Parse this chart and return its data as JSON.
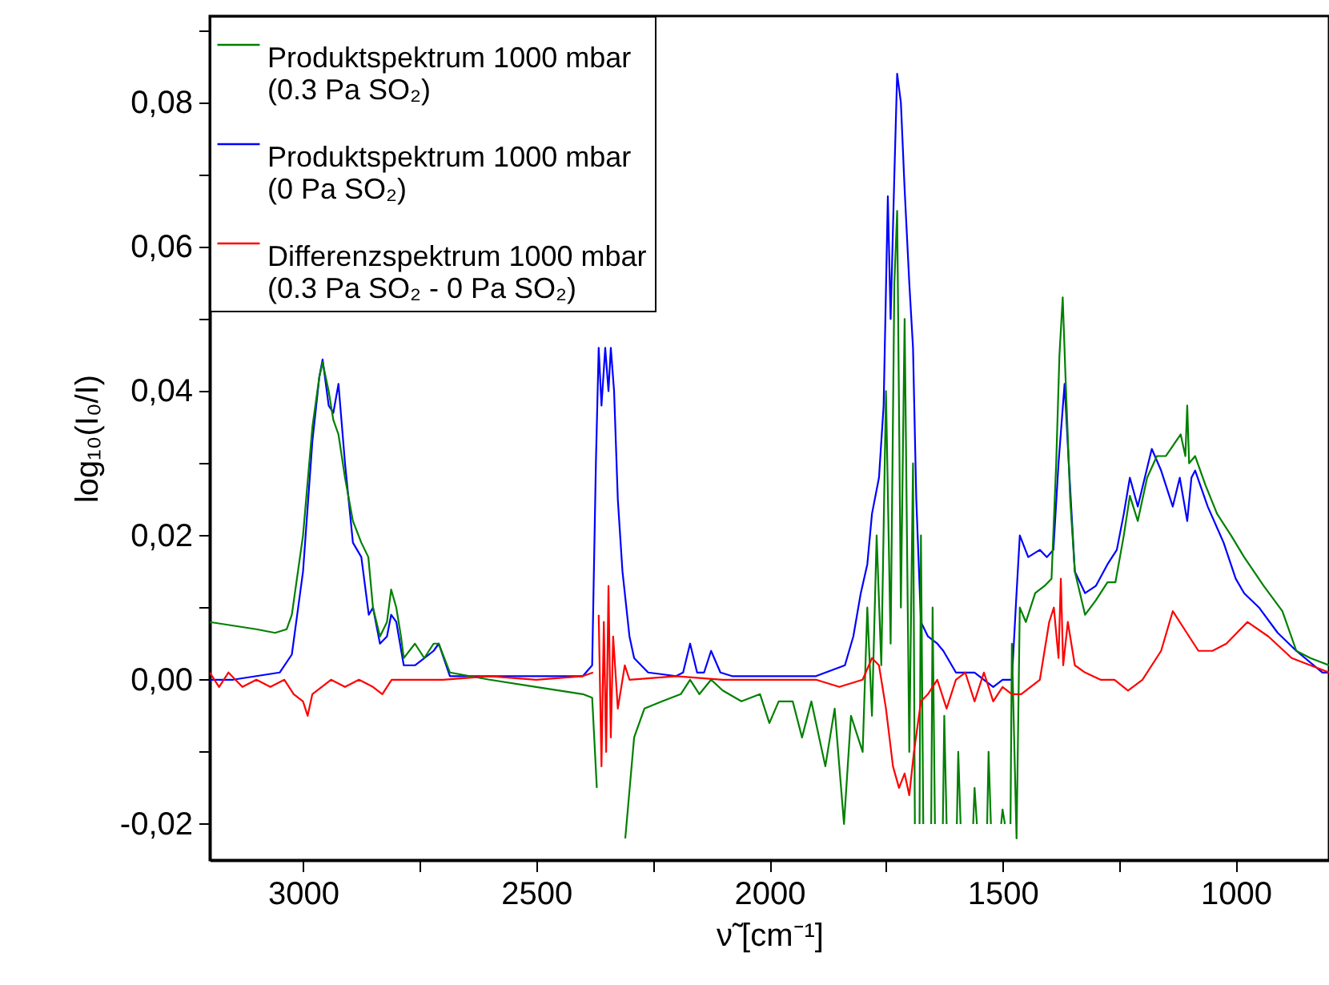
{
  "chart_data": {
    "type": "line",
    "xlabel": "ν̃ [cm⁻¹]",
    "ylabel": "log₁₀(I₀/I)",
    "legend": "top left",
    "grid": false,
    "xlim": [
      3200,
      800
    ],
    "xticks": [
      3000,
      {
        "value": 2750,
        "label": null
      },
      2500,
      {
        "value": 2250,
        "label": null
      },
      2000,
      {
        "value": 1750,
        "label": null
      },
      1500,
      {
        "value": 1250,
        "label": null
      },
      1000
    ],
    "ylim": [
      -0.025,
      0.092
    ],
    "yticks": [
      {
        "value": -0.02,
        "label": "-0,02"
      },
      {
        "value": -0.01,
        "label": null
      },
      {
        "value": 0,
        "label": "0,00"
      },
      {
        "value": 0.01,
        "label": null
      },
      {
        "value": 0.02,
        "label": "0,02"
      },
      {
        "value": 0.03,
        "label": null
      },
      {
        "value": 0.04,
        "label": "0,04"
      },
      {
        "value": 0.05,
        "label": null
      },
      {
        "value": 0.06,
        "label": "0,06"
      },
      {
        "value": 0.07,
        "label": null
      },
      {
        "value": 0.08,
        "label": "0,08"
      },
      {
        "value": 0.09,
        "label": null
      }
    ],
    "series": [
      {
        "name": "Produktspektrum   1000 mbar\n(0.3 Pa SO₂)",
        "color": "#008000",
        "x": [
          3200,
          3150,
          3100,
          3060,
          3035,
          3024,
          3000,
          2980,
          2965,
          2958,
          2945,
          2935,
          2924,
          2910,
          2893,
          2875,
          2860,
          2850,
          2835,
          2820,
          2811,
          2800,
          2790,
          2784,
          2760,
          2740,
          2720,
          2709,
          2685,
          2600,
          2500,
          2400,
          2380,
          2370,
          2362,
          2320,
          2309,
          2290,
          2268,
          2230,
          2190,
          2170,
          2150,
          2125,
          2100,
          2060,
          2020,
          2000,
          1980,
          1950,
          1930,
          1910,
          1880,
          1860,
          1840,
          1825,
          1800,
          1790,
          1780,
          1770,
          1760,
          1750,
          1740,
          1732,
          1726,
          1718,
          1710,
          1700,
          1692,
          1688,
          1685,
          1678,
          1675,
          1670,
          1665,
          1653,
          1650,
          1645,
          1640,
          1628,
          1625,
          1620,
          1610,
          1598,
          1595,
          1590,
          1580,
          1563,
          1560,
          1555,
          1545,
          1533,
          1530,
          1525,
          1515,
          1503,
          1500,
          1495,
          1490,
          1483,
          1480,
          1470,
          1463,
          1450,
          1430,
          1410,
          1395,
          1385,
          1378,
          1371,
          1365,
          1355,
          1345,
          1323,
          1300,
          1275,
          1258,
          1240,
          1227,
          1210,
          1190,
          1169,
          1150,
          1118,
          1108,
          1104,
          1100,
          1087,
          1065,
          1040,
          1010,
          982,
          940,
          900,
          870,
          840,
          800
        ],
        "values": [
          0.008,
          0.0075,
          0.007,
          0.0065,
          0.007,
          0.009,
          0.02,
          0.035,
          0.042,
          0.044,
          0.04,
          0.036,
          0.034,
          0.028,
          0.022,
          0.019,
          0.017,
          0.01,
          0.006,
          0.008,
          0.0125,
          0.01,
          0.006,
          0.003,
          0.005,
          0.003,
          0.005,
          0.005,
          0.001,
          0,
          -0.001,
          -0.002,
          -0.0025,
          -0.015,
          null,
          null,
          -0.022,
          -0.008,
          -0.004,
          -0.003,
          -0.002,
          0,
          -0.002,
          0,
          -0.0015,
          -0.003,
          -0.002,
          -0.006,
          -0.003,
          -0.003,
          -0.008,
          -0.003,
          -0.012,
          -0.004,
          -0.02,
          -0.005,
          -0.01,
          0.01,
          -0.005,
          0.02,
          0.002,
          0.04,
          0.005,
          0.055,
          0.065,
          0.01,
          0.05,
          -0.01,
          0.03,
          -0.02,
          null,
          -0.02,
          0.02,
          -0.02,
          null,
          -0.02,
          0.01,
          -0.02,
          null,
          -0.02,
          -0.005,
          -0.02,
          null,
          -0.02,
          -0.01,
          -0.02,
          null,
          -0.02,
          -0.015,
          -0.02,
          null,
          -0.02,
          -0.01,
          -0.02,
          null,
          -0.02,
          -0.018,
          -0.02,
          null,
          -0.02,
          0.005,
          -0.022,
          0.01,
          0.008,
          0.012,
          0.013,
          0.014,
          0.03,
          0.045,
          0.053,
          0.042,
          0.025,
          0.015,
          0.009,
          0.011,
          0.0135,
          0.0135,
          0.02,
          0.0255,
          0.022,
          0.028,
          0.031,
          0.031,
          0.034,
          0.031,
          0.038,
          0.03,
          0.031,
          0.027,
          0.023,
          0.02,
          0.017,
          0.013,
          0.0095,
          0.004,
          0.003,
          0.002
        ]
      },
      {
        "name": "Produktspektrum   1000 mbar\n(0 Pa SO₂)",
        "color": "#0000ff",
        "x": [
          3200,
          3150,
          3100,
          3050,
          3024,
          3000,
          2980,
          2965,
          2958,
          2945,
          2935,
          2924,
          2910,
          2893,
          2875,
          2859,
          2850,
          2835,
          2820,
          2811,
          2800,
          2784,
          2760,
          2740,
          2720,
          2709,
          2685,
          2600,
          2500,
          2400,
          2380,
          2372,
          2366,
          2360,
          2352,
          2345,
          2340,
          2333,
          2325,
          2315,
          2300,
          2290,
          2260,
          2200,
          2185,
          2170,
          2155,
          2140,
          2125,
          2105,
          2080,
          2000,
          1900,
          1838,
          1820,
          1804,
          1790,
          1780,
          1765,
          1755,
          1746,
          1740,
          1732,
          1726,
          1718,
          1710,
          1700,
          1692,
          1685,
          1675,
          1660,
          1640,
          1627,
          1600,
          1560,
          1520,
          1500,
          1480,
          1470,
          1463,
          1445,
          1420,
          1405,
          1391,
          1380,
          1367,
          1358,
          1345,
          1323,
          1300,
          1275,
          1255,
          1240,
          1227,
          1210,
          1195,
          1180,
          1160,
          1135,
          1120,
          1104,
          1095,
          1087,
          1060,
          1026,
          1000,
          982,
          950,
          910,
          870,
          814,
          800
        ],
        "values": [
          0,
          0,
          0.0005,
          0.001,
          0.0035,
          0.015,
          0.033,
          0.042,
          0.0444,
          0.038,
          0.037,
          0.041,
          0.03,
          0.019,
          0.017,
          0.009,
          0.01,
          0.005,
          0.006,
          0.009,
          0.008,
          0.002,
          0.002,
          0.003,
          0.004,
          0.005,
          0.0005,
          0.0005,
          0.0005,
          0.0005,
          0.002,
          0.03,
          0.046,
          0.038,
          0.046,
          0.04,
          0.046,
          0.04,
          0.025,
          0.015,
          0.006,
          0.003,
          0.001,
          0.0005,
          0.001,
          0.005,
          0.001,
          0.001,
          0.004,
          0.001,
          0.0005,
          0.0005,
          0.0005,
          0.002,
          0.006,
          0.012,
          0.016,
          0.023,
          0.028,
          0.038,
          0.067,
          0.05,
          0.07,
          0.084,
          0.08,
          0.068,
          0.055,
          0.046,
          0.025,
          0.008,
          0.006,
          0.005,
          0.004,
          0.001,
          0.001,
          -0.001,
          0,
          0,
          0.012,
          0.02,
          0.017,
          0.018,
          0.017,
          0.018,
          0.03,
          0.041,
          0.03,
          0.015,
          0.012,
          0.013,
          0.016,
          0.018,
          0.023,
          0.028,
          0.024,
          0.028,
          0.032,
          0.029,
          0.024,
          0.028,
          0.022,
          0.028,
          0.029,
          0.024,
          0.019,
          0.014,
          0.012,
          0.01,
          0.0065,
          0.004,
          0.001,
          0.001
        ]
      },
      {
        "name": "Differenzspektrum 1000 mbar\n(0.3 Pa SO₂ - 0 Pa SO₂)",
        "color": "#ff0000",
        "x": [
          3200,
          3180,
          3160,
          3130,
          3100,
          3070,
          3040,
          3020,
          3000,
          2990,
          2980,
          2960,
          2940,
          2910,
          2880,
          2850,
          2830,
          2810,
          2780,
          2750,
          2700,
          2600,
          2500,
          2400,
          2378,
          2372,
          2366,
          2360,
          2355,
          2350,
          2345,
          2340,
          2335,
          2325,
          2310,
          2300,
          2200,
          2100,
          2000,
          1950,
          1900,
          1850,
          1800,
          1780,
          1765,
          1750,
          1735,
          1722,
          1710,
          1700,
          1690,
          1675,
          1660,
          1640,
          1620,
          1600,
          1580,
          1560,
          1540,
          1520,
          1500,
          1480,
          1460,
          1440,
          1420,
          1400,
          1390,
          1380,
          1375,
          1370,
          1360,
          1345,
          1323,
          1290,
          1260,
          1231,
          1200,
          1160,
          1135,
          1110,
          1080,
          1050,
          1020,
          975,
          930,
          880,
          840,
          800
        ],
        "values": [
          0.001,
          -0.001,
          0.001,
          -0.001,
          0,
          -0.001,
          0,
          -0.002,
          -0.003,
          -0.005,
          -0.002,
          -0.001,
          0,
          -0.001,
          0,
          -0.001,
          -0.002,
          0,
          0,
          0,
          0,
          0.0005,
          0,
          0.0005,
          0.001,
          null,
          0.009,
          -0.012,
          0.008,
          -0.01,
          0.013,
          -0.008,
          0.006,
          -0.004,
          0.002,
          0,
          0.0005,
          0,
          0,
          0,
          0,
          -0.001,
          0,
          0.003,
          0.002,
          -0.004,
          -0.012,
          -0.015,
          -0.013,
          -0.016,
          -0.01,
          -0.003,
          -0.002,
          0,
          -0.004,
          0,
          0.001,
          -0.003,
          0.001,
          -0.003,
          -0.001,
          -0.002,
          -0.002,
          -0.001,
          0,
          0.008,
          0.01,
          0.003,
          0.014,
          0.002,
          0.008,
          0.002,
          0.001,
          0,
          0,
          -0.0015,
          0,
          0.004,
          0.0095,
          0.007,
          0.004,
          0.004,
          0.005,
          0.008,
          0.006,
          0.003,
          0.002,
          0.001
        ]
      }
    ]
  }
}
